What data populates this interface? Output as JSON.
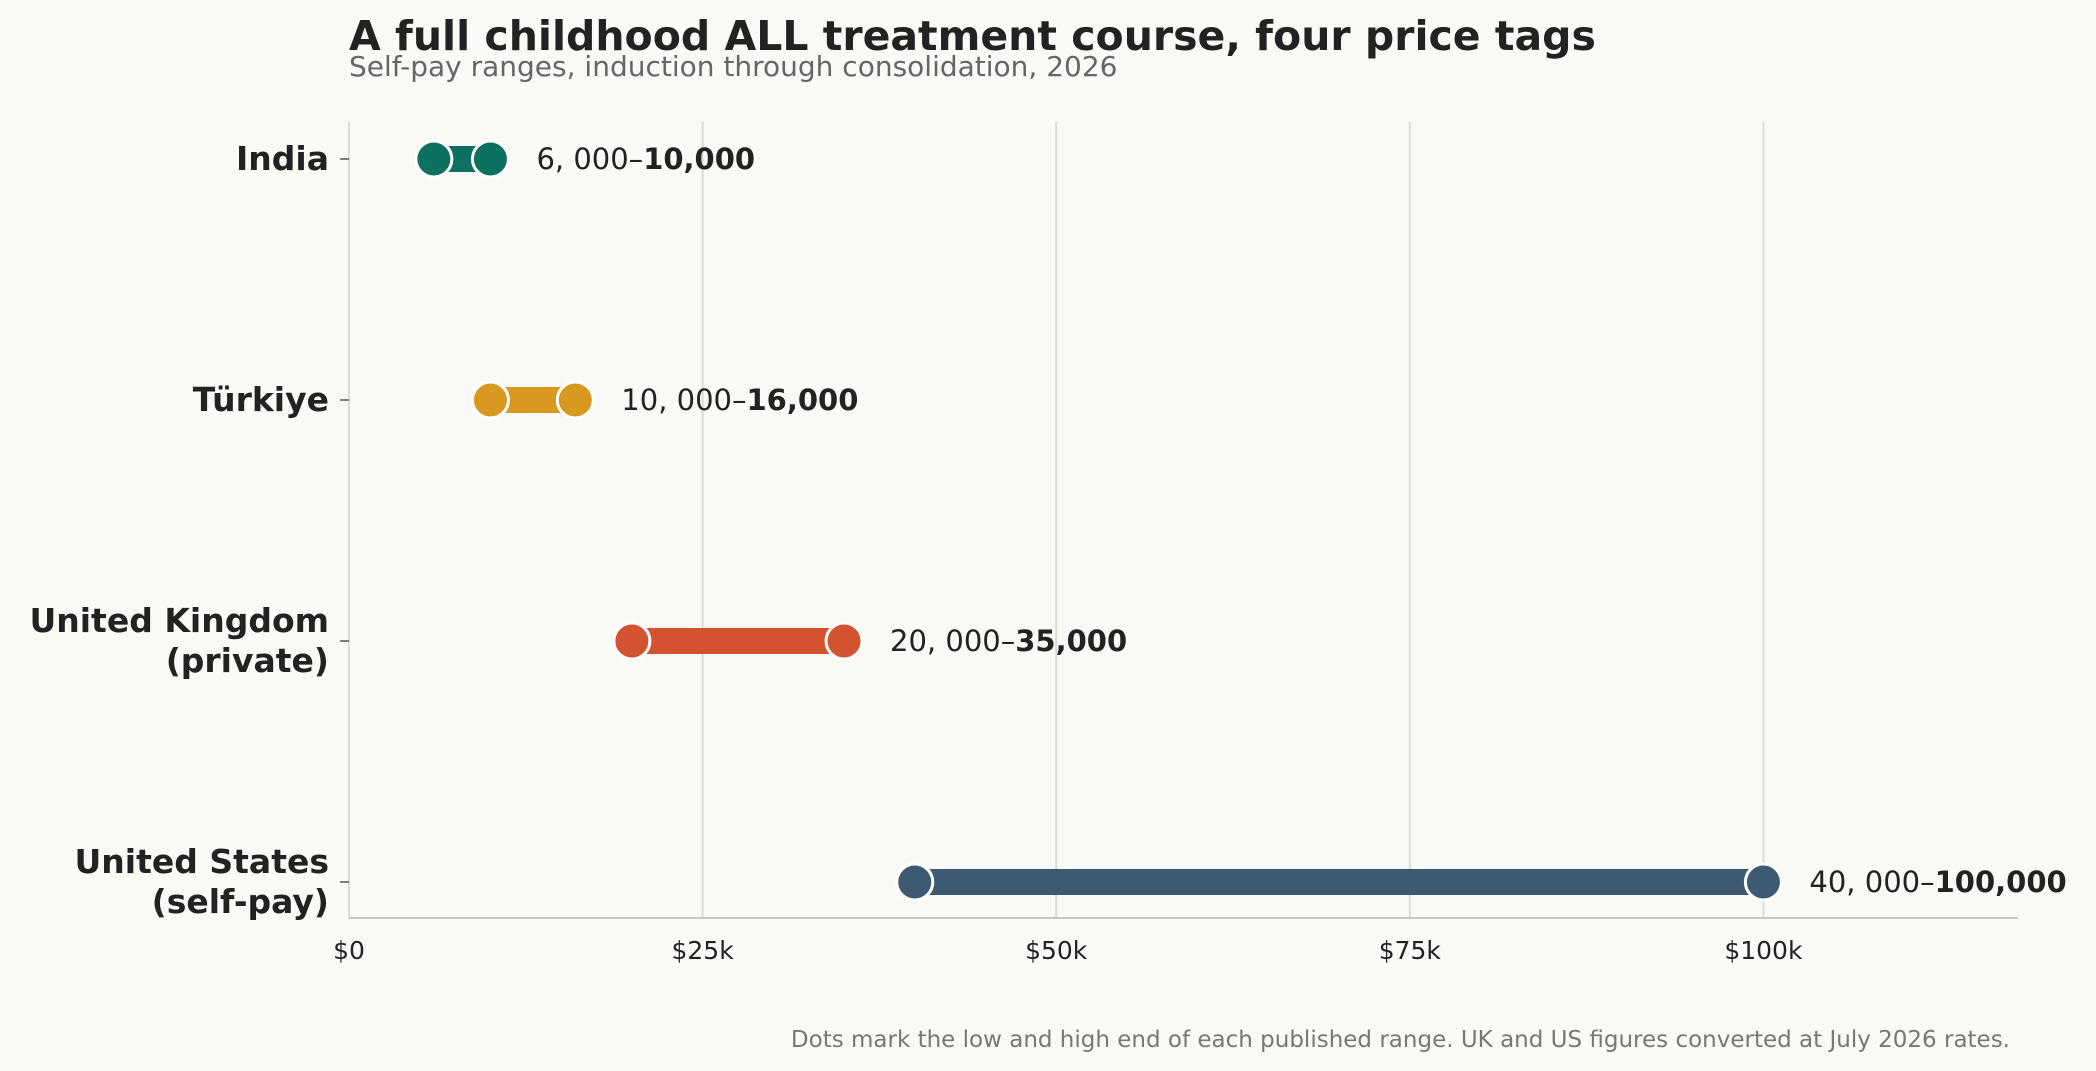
{
  "chart_data": {
    "type": "range",
    "title": "A full childhood ALL treatment course, four price tags",
    "subtitle": "Self-pay ranges, induction through consolidation, 2026",
    "footnote": "Dots mark the low and high end of each published range. UK and US figures converted at July 2026 rates.",
    "xlim": [
      0,
      118000
    ],
    "x_ticks": [
      {
        "value": 0,
        "label": "$0"
      },
      {
        "value": 25000,
        "label": "$25k"
      },
      {
        "value": 50000,
        "label": "$50k"
      },
      {
        "value": 75000,
        "label": "$75k"
      },
      {
        "value": 100000,
        "label": "$100k"
      }
    ],
    "grid": "vertical",
    "categories": [
      {
        "lines": [
          "India"
        ],
        "low": 6000,
        "high": 10000,
        "color": "#0e7060",
        "label_low": "6, 000–",
        "label_high": "10,000"
      },
      {
        "lines": [
          "Türkiye"
        ],
        "low": 10000,
        "high": 16000,
        "color": "#d9981f",
        "label_low": "10, 000–",
        "label_high": "16,000"
      },
      {
        "lines": [
          "United Kingdom",
          "(private)"
        ],
        "low": 20000,
        "high": 35000,
        "color": "#d35230",
        "label_low": "20, 000–",
        "label_high": "35,000"
      },
      {
        "lines": [
          "United States",
          "(self-pay)"
        ],
        "low": 40000,
        "high": 100000,
        "color": "#3e5a72",
        "label_low": "40, 000–",
        "label_high": "100,000"
      }
    ]
  }
}
